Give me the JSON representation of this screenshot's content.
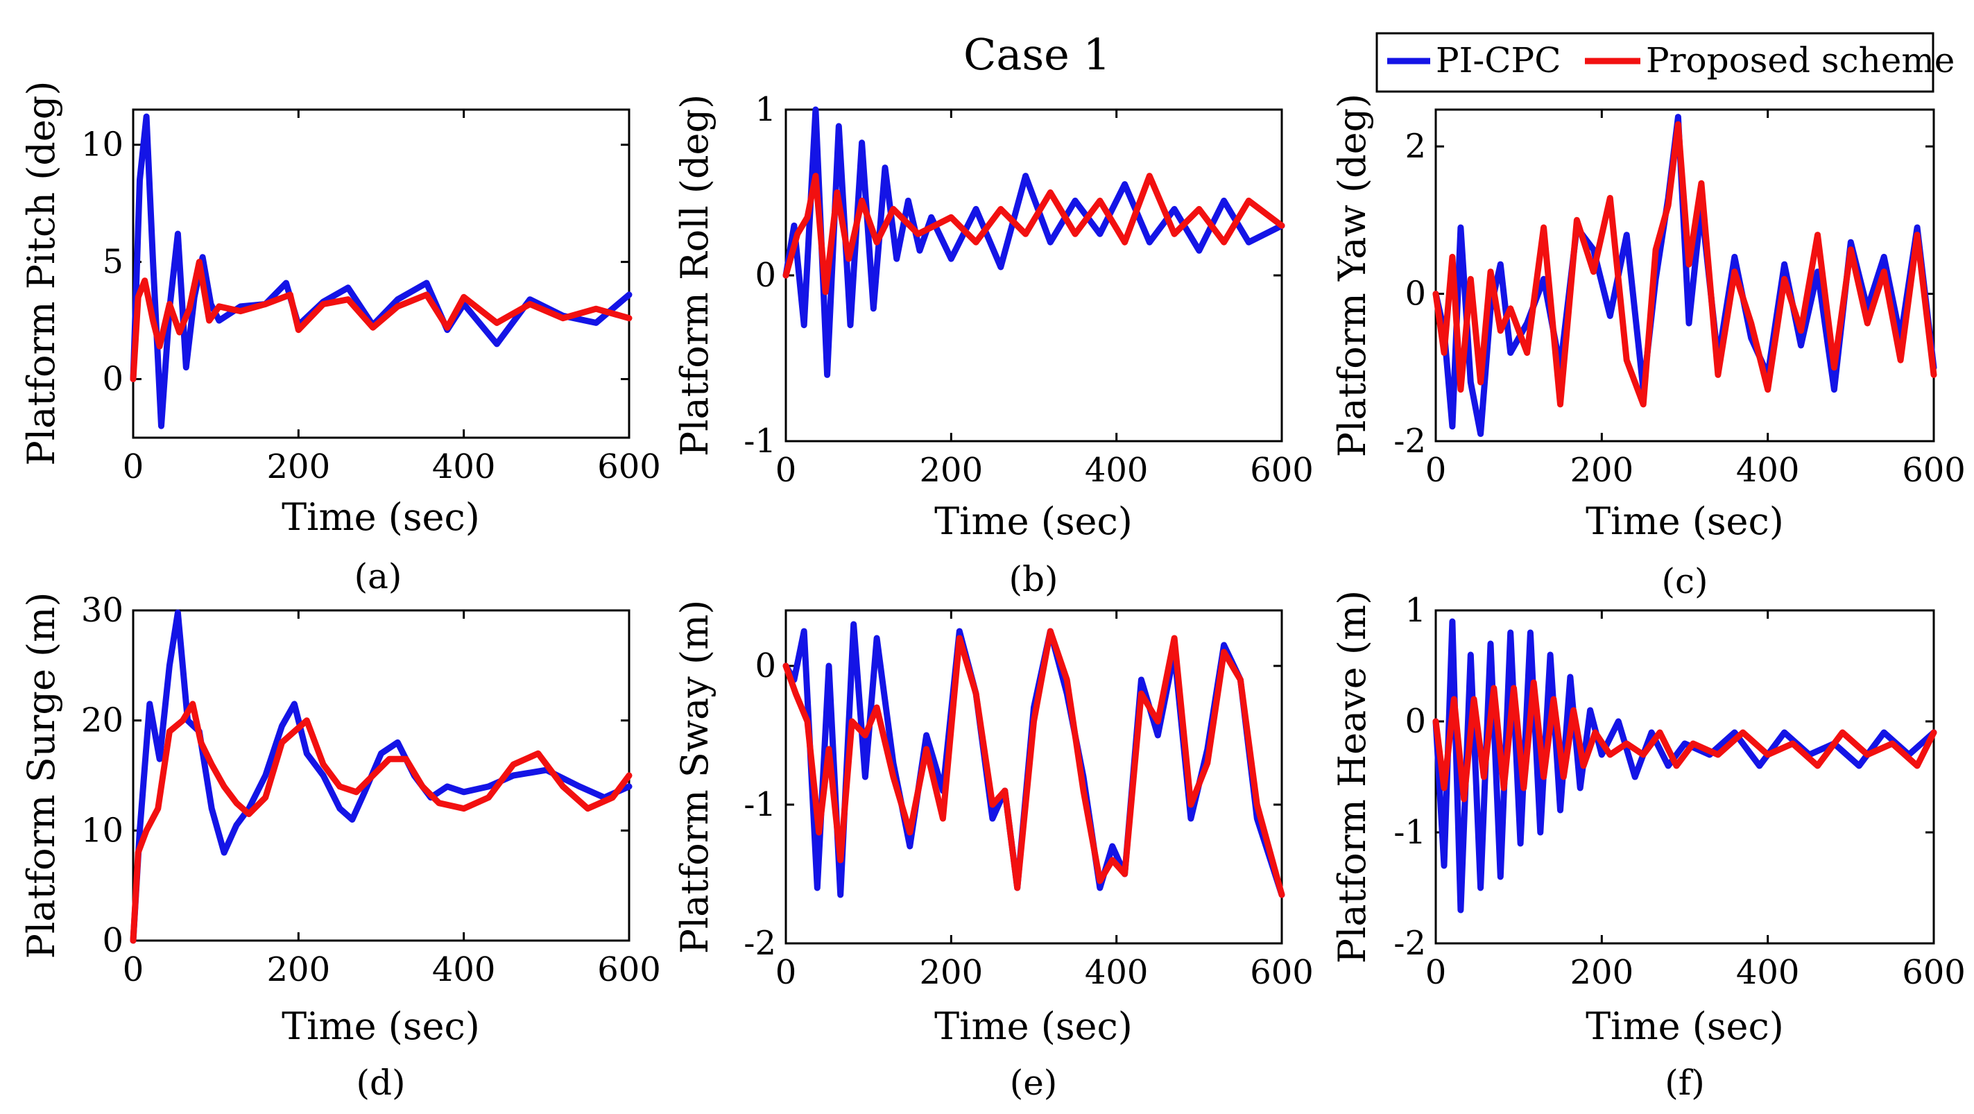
{
  "figure": {
    "title": "Case 1",
    "legend": {
      "placement": "top-right",
      "entries": [
        {
          "label": "PI-CPC",
          "color": "#1414e6"
        },
        {
          "label": "Proposed scheme",
          "color": "#f21010"
        }
      ]
    }
  },
  "chart_data": [
    {
      "type": "line",
      "panel": "(a)",
      "xlabel": "Time (sec)",
      "ylabel": "Platform Pitch (deg)",
      "xlim": [
        0,
        600
      ],
      "ylim": [
        -2.5,
        11.5
      ],
      "xticks": [
        0,
        200,
        400,
        600
      ],
      "xtick_labels": [
        "0",
        "200",
        "400",
        "600"
      ],
      "yticks": [
        0,
        5,
        10
      ],
      "ytick_labels": [
        "0",
        "5",
        "10"
      ],
      "series": [
        {
          "name": "PI-CPC",
          "color": "#1414e6",
          "x": [
            0,
            8,
            16,
            24,
            34,
            44,
            54,
            64,
            74,
            84,
            94,
            104,
            130,
            160,
            185,
            200,
            230,
            260,
            290,
            320,
            355,
            380,
            400,
            440,
            480,
            520,
            560,
            600
          ],
          "y": [
            0,
            8.5,
            11.2,
            5,
            -2,
            3,
            6.2,
            0.5,
            3.5,
            5.2,
            3.2,
            2.5,
            3.1,
            3.2,
            4.1,
            2.3,
            3.3,
            3.9,
            2.3,
            3.4,
            4.1,
            2.1,
            3.2,
            1.5,
            3.4,
            2.7,
            2.4,
            3.6
          ]
        },
        {
          "name": "Proposed scheme",
          "color": "#f21010",
          "x": [
            0,
            6,
            14,
            24,
            32,
            44,
            56,
            68,
            80,
            92,
            104,
            130,
            160,
            190,
            200,
            230,
            260,
            290,
            320,
            355,
            380,
            400,
            440,
            480,
            520,
            560,
            600
          ],
          "y": [
            0,
            3.5,
            4.2,
            2.5,
            1.4,
            3.2,
            2,
            3,
            5,
            2.5,
            3.1,
            2.9,
            3.2,
            3.6,
            2.1,
            3.2,
            3.4,
            2.2,
            3.1,
            3.6,
            2.2,
            3.5,
            2.4,
            3.2,
            2.6,
            3,
            2.6
          ]
        }
      ]
    },
    {
      "type": "line",
      "panel": "(b)",
      "xlabel": "Time (sec)",
      "ylabel": "Platform Roll (deg)",
      "xlim": [
        0,
        600
      ],
      "ylim": [
        -1,
        1
      ],
      "xticks": [
        0,
        200,
        400,
        600
      ],
      "xtick_labels": [
        "0",
        "200",
        "400",
        "600"
      ],
      "yticks": [
        -1,
        0,
        1
      ],
      "ytick_labels": [
        "-1",
        "0",
        "1"
      ],
      "series": [
        {
          "name": "PI-CPC",
          "color": "#1414e6",
          "x": [
            0,
            10,
            22,
            36,
            50,
            64,
            78,
            92,
            106,
            120,
            134,
            148,
            162,
            176,
            200,
            230,
            260,
            290,
            320,
            350,
            380,
            410,
            440,
            470,
            500,
            530,
            560,
            600
          ],
          "y": [
            0,
            0.3,
            -0.3,
            1,
            -0.6,
            0.9,
            -0.3,
            0.8,
            -0.2,
            0.65,
            0.1,
            0.45,
            0.15,
            0.35,
            0.1,
            0.4,
            0.05,
            0.6,
            0.2,
            0.45,
            0.25,
            0.55,
            0.2,
            0.4,
            0.15,
            0.45,
            0.2,
            0.3
          ]
        },
        {
          "name": "Proposed scheme",
          "color": "#f21010",
          "x": [
            0,
            14,
            26,
            36,
            48,
            62,
            76,
            92,
            110,
            130,
            160,
            200,
            230,
            260,
            290,
            320,
            350,
            380,
            410,
            440,
            470,
            500,
            530,
            560,
            600
          ],
          "y": [
            0,
            0.25,
            0.35,
            0.6,
            -0.1,
            0.5,
            0.1,
            0.45,
            0.2,
            0.4,
            0.25,
            0.35,
            0.2,
            0.4,
            0.25,
            0.5,
            0.25,
            0.45,
            0.2,
            0.6,
            0.25,
            0.4,
            0.2,
            0.45,
            0.3
          ]
        }
      ]
    },
    {
      "type": "line",
      "panel": "(c)",
      "xlabel": "Time (sec)",
      "ylabel": "Platform Yaw (deg)",
      "xlim": [
        0,
        600
      ],
      "ylim": [
        -2,
        2.5
      ],
      "xticks": [
        0,
        200,
        400,
        600
      ],
      "xtick_labels": [
        "0",
        "200",
        "400",
        "600"
      ],
      "yticks": [
        -2,
        0,
        2
      ],
      "ytick_labels": [
        "-2",
        "0",
        "2"
      ],
      "series": [
        {
          "name": "PI-CPC",
          "color": "#1414e6",
          "x": [
            0,
            10,
            20,
            30,
            42,
            54,
            66,
            78,
            90,
            110,
            130,
            150,
            170,
            190,
            210,
            230,
            250,
            265,
            280,
            292,
            305,
            320,
            340,
            360,
            380,
            400,
            420,
            440,
            460,
            480,
            500,
            520,
            540,
            560,
            580,
            600
          ],
          "y": [
            0,
            -0.5,
            -1.8,
            0.9,
            -1.2,
            -1.9,
            -0.2,
            0.4,
            -0.8,
            -0.4,
            0.2,
            -1,
            0.9,
            0.6,
            -0.3,
            0.8,
            -1.3,
            0.2,
            1.3,
            2.4,
            -0.4,
            1.2,
            -0.9,
            0.5,
            -0.6,
            -1.1,
            0.4,
            -0.7,
            0.3,
            -1.3,
            0.7,
            -0.2,
            0.5,
            -0.6,
            0.9,
            -1
          ]
        },
        {
          "name": "Proposed scheme",
          "color": "#f21010",
          "x": [
            0,
            10,
            20,
            30,
            42,
            54,
            66,
            78,
            90,
            110,
            130,
            150,
            170,
            190,
            210,
            230,
            250,
            265,
            280,
            292,
            305,
            320,
            340,
            360,
            380,
            400,
            420,
            440,
            460,
            480,
            500,
            520,
            540,
            560,
            580,
            600
          ],
          "y": [
            0,
            -0.8,
            0.5,
            -1.3,
            0.2,
            -1.2,
            0.3,
            -0.5,
            -0.2,
            -0.8,
            0.9,
            -1.5,
            1,
            0.3,
            1.3,
            -0.9,
            -1.5,
            0.6,
            1.2,
            2.3,
            0.4,
            1.5,
            -1.1,
            0.3,
            -0.4,
            -1.3,
            0.2,
            -0.5,
            0.8,
            -1,
            0.6,
            -0.4,
            0.3,
            -0.9,
            0.8,
            -1.1
          ]
        }
      ]
    },
    {
      "type": "line",
      "panel": "(d)",
      "xlabel": "Time (sec)",
      "ylabel": "Platform Surge (m)",
      "xlim": [
        0,
        600
      ],
      "ylim": [
        0,
        30
      ],
      "xticks": [
        0,
        200,
        400,
        600
      ],
      "xtick_labels": [
        "0",
        "200",
        "400",
        "600"
      ],
      "yticks": [
        0,
        10,
        20,
        30
      ],
      "ytick_labels": [
        "0",
        "10",
        "20",
        "30"
      ],
      "series": [
        {
          "name": "PI-CPC",
          "color": "#1414e6",
          "x": [
            0,
            8,
            20,
            32,
            44,
            54,
            66,
            80,
            95,
            110,
            125,
            140,
            160,
            180,
            195,
            210,
            230,
            250,
            265,
            280,
            300,
            320,
            340,
            360,
            380,
            400,
            430,
            460,
            500,
            540,
            570,
            600
          ],
          "y": [
            0,
            10,
            21.5,
            16.5,
            25,
            29.8,
            20,
            19,
            12,
            8,
            10.5,
            12,
            15,
            19.5,
            21.5,
            17,
            15,
            12,
            11,
            13.5,
            17,
            18,
            15,
            13,
            14,
            13.5,
            14,
            15,
            15.5,
            14,
            13,
            14
          ]
        },
        {
          "name": "Proposed scheme",
          "color": "#f21010",
          "x": [
            0,
            6,
            16,
            30,
            44,
            60,
            72,
            82,
            95,
            110,
            125,
            140,
            160,
            180,
            195,
            210,
            230,
            250,
            270,
            290,
            310,
            330,
            350,
            370,
            400,
            430,
            460,
            490,
            520,
            550,
            580,
            600
          ],
          "y": [
            0,
            8,
            10,
            12,
            19,
            20,
            21.5,
            18,
            16,
            14,
            12.5,
            11.5,
            13,
            18,
            19,
            20,
            16,
            14,
            13.5,
            15,
            16.5,
            16.5,
            14,
            12.5,
            12,
            13,
            16,
            17,
            14,
            12,
            13,
            15
          ]
        }
      ]
    },
    {
      "type": "line",
      "panel": "(e)",
      "xlabel": "Time (sec)",
      "ylabel": "Platform Sway (m)",
      "xlim": [
        0,
        600
      ],
      "ylim": [
        -2,
        0.4
      ],
      "xticks": [
        0,
        200,
        400,
        600
      ],
      "xtick_labels": [
        "0",
        "200",
        "400",
        "600"
      ],
      "yticks": [
        -2,
        -1,
        0
      ],
      "ytick_labels": [
        "-2",
        "-1",
        "0"
      ],
      "series": [
        {
          "name": "PI-CPC",
          "color": "#1414e6",
          "x": [
            0,
            10,
            22,
            38,
            52,
            66,
            82,
            96,
            110,
            130,
            150,
            170,
            190,
            210,
            230,
            250,
            265,
            280,
            300,
            320,
            340,
            360,
            380,
            395,
            410,
            430,
            450,
            470,
            490,
            510,
            530,
            550,
            570,
            600
          ],
          "y": [
            0,
            -0.1,
            0.25,
            -1.6,
            0,
            -1.65,
            0.3,
            -0.8,
            0.2,
            -0.7,
            -1.3,
            -0.5,
            -0.9,
            0.25,
            -0.2,
            -1.1,
            -0.9,
            -1.6,
            -0.3,
            0.25,
            -0.2,
            -0.8,
            -1.6,
            -1.3,
            -1.5,
            -0.1,
            -0.5,
            0.1,
            -1.1,
            -0.6,
            0.15,
            -0.1,
            -1.1,
            -1.65
          ]
        },
        {
          "name": "Proposed scheme",
          "color": "#f21010",
          "x": [
            0,
            12,
            26,
            40,
            52,
            66,
            80,
            96,
            110,
            130,
            150,
            170,
            190,
            210,
            230,
            250,
            265,
            280,
            300,
            320,
            340,
            360,
            380,
            395,
            410,
            430,
            450,
            470,
            490,
            510,
            530,
            550,
            570,
            600
          ],
          "y": [
            0,
            -0.2,
            -0.4,
            -1.2,
            -0.6,
            -1.4,
            -0.4,
            -0.5,
            -0.3,
            -0.8,
            -1.2,
            -0.6,
            -1.1,
            0.2,
            -0.2,
            -1,
            -0.9,
            -1.6,
            -0.4,
            0.25,
            -0.1,
            -0.9,
            -1.55,
            -1.4,
            -1.5,
            -0.2,
            -0.4,
            0.2,
            -1,
            -0.7,
            0.1,
            -0.1,
            -1,
            -1.65
          ]
        }
      ]
    },
    {
      "type": "line",
      "panel": "(f)",
      "xlabel": "Time (sec)",
      "ylabel": "Platform Heave (m)",
      "xlim": [
        0,
        600
      ],
      "ylim": [
        -2,
        1
      ],
      "xticks": [
        0,
        200,
        400,
        600
      ],
      "xtick_labels": [
        "0",
        "200",
        "400",
        "600"
      ],
      "yticks": [
        -2,
        -1,
        0,
        1
      ],
      "ytick_labels": [
        "-2",
        "-1",
        "0",
        "1"
      ],
      "series": [
        {
          "name": "PI-CPC",
          "color": "#1414e6",
          "x": [
            0,
            10,
            20,
            30,
            42,
            54,
            66,
            78,
            90,
            102,
            114,
            126,
            138,
            150,
            162,
            174,
            186,
            200,
            220,
            240,
            260,
            280,
            300,
            330,
            360,
            390,
            420,
            450,
            480,
            510,
            540,
            570,
            600
          ],
          "y": [
            0,
            -1.3,
            0.9,
            -1.7,
            0.6,
            -1.5,
            0.7,
            -1.4,
            0.8,
            -1.1,
            0.8,
            -1,
            0.6,
            -0.8,
            0.4,
            -0.6,
            0.1,
            -0.3,
            0,
            -0.5,
            -0.1,
            -0.4,
            -0.2,
            -0.3,
            -0.1,
            -0.4,
            -0.1,
            -0.3,
            -0.2,
            -0.4,
            -0.1,
            -0.3,
            -0.1
          ]
        },
        {
          "name": "Proposed scheme",
          "color": "#f21010",
          "x": [
            0,
            10,
            22,
            34,
            46,
            58,
            70,
            82,
            94,
            106,
            118,
            130,
            142,
            154,
            166,
            178,
            192,
            210,
            230,
            250,
            270,
            290,
            310,
            340,
            370,
            400,
            430,
            460,
            490,
            520,
            550,
            580,
            600
          ],
          "y": [
            0,
            -0.6,
            0.2,
            -0.7,
            0.2,
            -0.5,
            0.3,
            -0.6,
            0.3,
            -0.6,
            0.35,
            -0.5,
            0.2,
            -0.5,
            0.1,
            -0.4,
            -0.1,
            -0.3,
            -0.2,
            -0.3,
            -0.1,
            -0.4,
            -0.2,
            -0.3,
            -0.1,
            -0.3,
            -0.2,
            -0.4,
            -0.1,
            -0.3,
            -0.2,
            -0.4,
            -0.1
          ]
        }
      ]
    }
  ]
}
